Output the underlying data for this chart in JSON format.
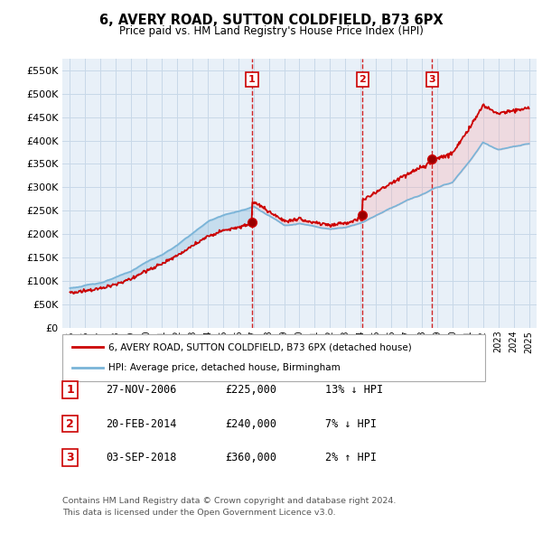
{
  "title": "6, AVERY ROAD, SUTTON COLDFIELD, B73 6PX",
  "subtitle": "Price paid vs. HM Land Registry's House Price Index (HPI)",
  "legend_label_red": "6, AVERY ROAD, SUTTON COLDFIELD, B73 6PX (detached house)",
  "legend_label_blue": "HPI: Average price, detached house, Birmingham",
  "footer1": "Contains HM Land Registry data © Crown copyright and database right 2024.",
  "footer2": "This data is licensed under the Open Government Licence v3.0.",
  "transactions": [
    {
      "num": 1,
      "date": "27-NOV-2006",
      "price": "£225,000",
      "hpi": "13% ↓ HPI",
      "year": 2006.9
    },
    {
      "num": 2,
      "date": "20-FEB-2014",
      "price": "£240,000",
      "hpi": "7% ↓ HPI",
      "year": 2014.13
    },
    {
      "num": 3,
      "date": "03-SEP-2018",
      "price": "£360,000",
      "hpi": "2% ↑ HPI",
      "year": 2018.67
    }
  ],
  "transaction_prices": [
    225000,
    240000,
    360000
  ],
  "hpi_color": "#7ab4d8",
  "price_color": "#cc0000",
  "vline_color": "#cc0000",
  "grid_color": "#c8d8e8",
  "bg_color": "#ffffff",
  "plot_bg_color": "#e8f0f8",
  "ylim": [
    0,
    575000
  ],
  "yticks": [
    0,
    50000,
    100000,
    150000,
    200000,
    250000,
    300000,
    350000,
    400000,
    450000,
    500000,
    550000
  ],
  "xlim_start": 1994.5,
  "xlim_end": 2025.5
}
